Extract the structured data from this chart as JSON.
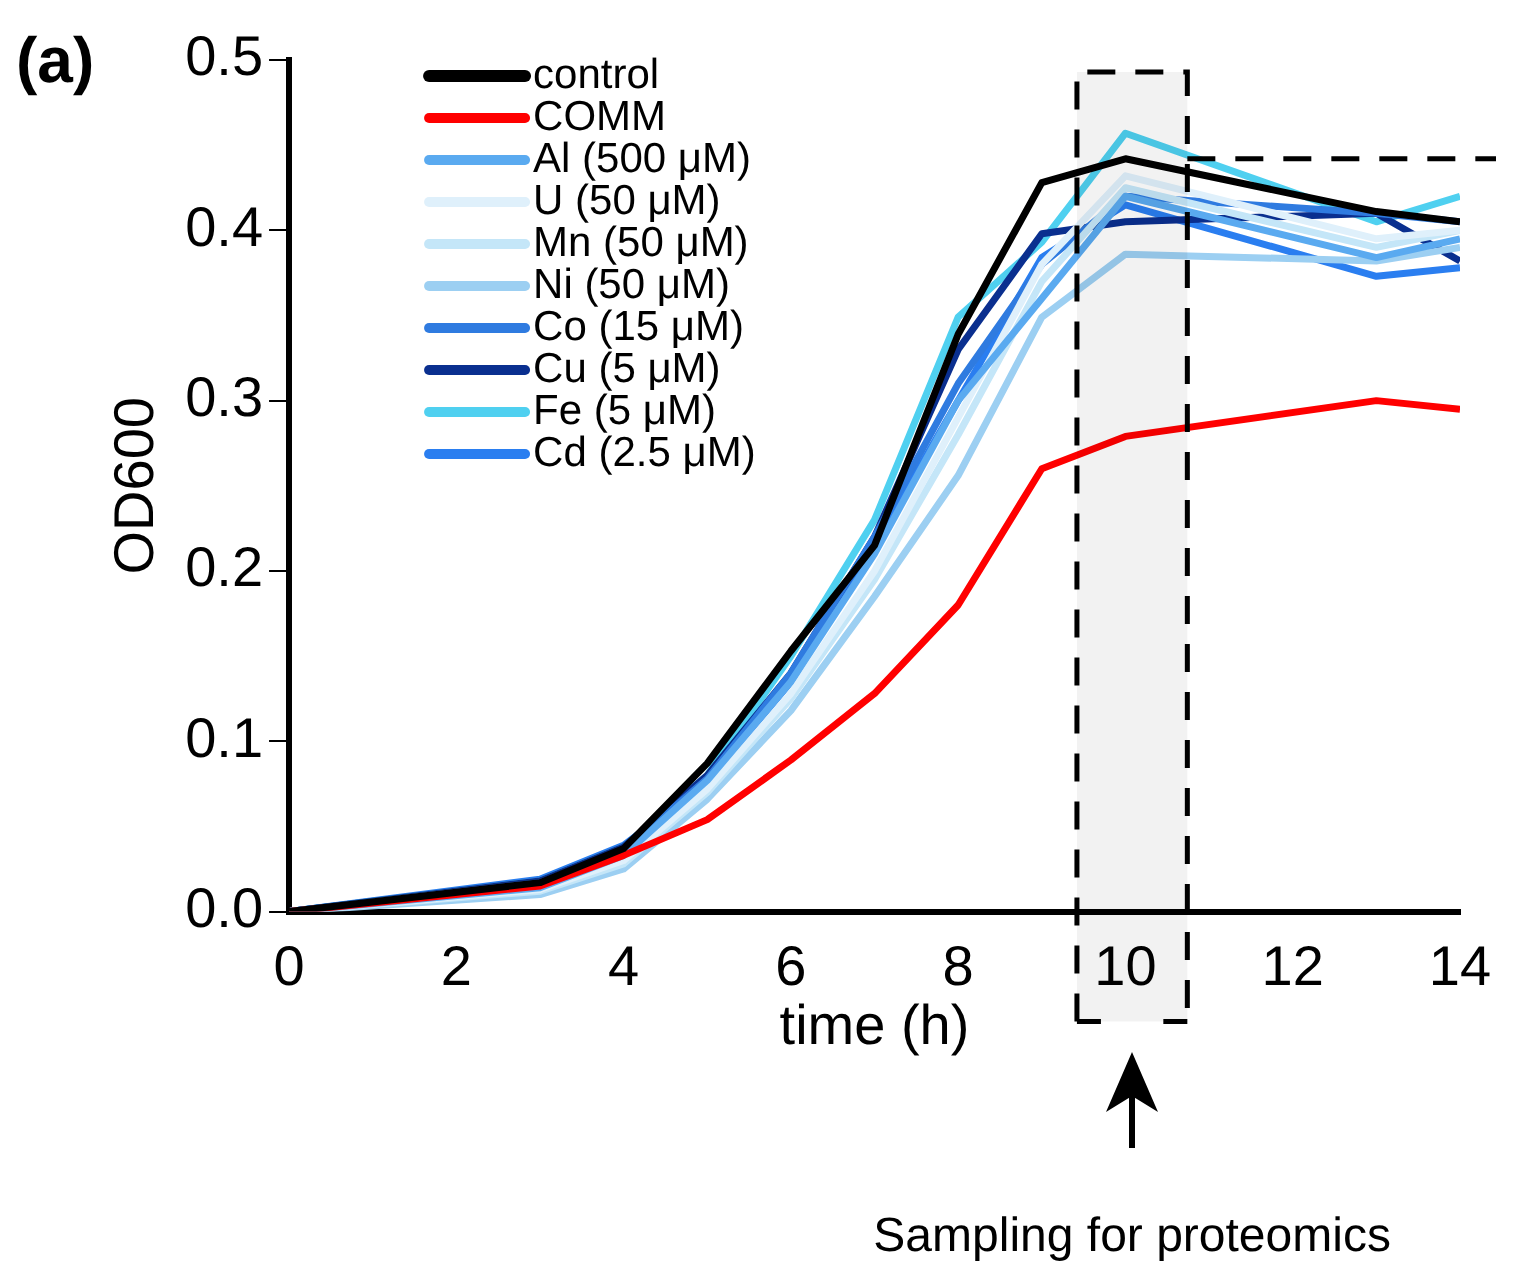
{
  "chart_data": {
    "type": "line",
    "xlabel": "time (h)",
    "ylabel": "OD600",
    "annotations": [
      "(a)",
      "Sampling for proteomics"
    ],
    "bands": [
      {
        "axis": "x",
        "from": 9.42,
        "to": 10.74,
        "color": "#000000"
      }
    ],
    "x": [
      0,
      3,
      4,
      5,
      6,
      7,
      8,
      9,
      10,
      13,
      14
    ],
    "xlim": [
      0,
      14
    ],
    "xticks": [
      0,
      2,
      4,
      6,
      8,
      10,
      12,
      14
    ],
    "ylim": [
      0,
      0.5
    ],
    "yticks": [
      {
        "value": 0,
        "label": "0.0"
      },
      0.1,
      0.2,
      0.3,
      0.4,
      0.5
    ],
    "grid": false,
    "legend": "top left",
    "marker": "none",
    "line_style": "solid",
    "ref_lines": [
      {
        "axis": "y",
        "value": 0.442,
        "color": "#000000",
        "line_style": "dashed"
      }
    ],
    "series": [
      {
        "name": "control",
        "color": "#000000",
        "values": [
          0,
          0.017,
          0.037,
          0.087,
          0.153,
          0.215,
          0.339,
          0.428,
          0.442,
          0.411,
          0.405
        ]
      },
      {
        "name": "COMM",
        "color": "#ff0000",
        "values": [
          0,
          0.015,
          0.033,
          0.054,
          0.089,
          0.128,
          0.18,
          0.26,
          0.279,
          0.3,
          0.295
        ]
      },
      {
        "name": "Al (500 μM)",
        "color": "#5aaaf0",
        "values": [
          0,
          0.014,
          0.033,
          0.077,
          0.135,
          0.21,
          0.3,
          0.36,
          0.42,
          0.384,
          0.395
        ]
      },
      {
        "name": "U (50 μM)",
        "color": "#dff0fb",
        "values": [
          0,
          0.013,
          0.03,
          0.072,
          0.128,
          0.2,
          0.29,
          0.38,
          0.432,
          0.395,
          0.4
        ]
      },
      {
        "name": "Mn (50 μM)",
        "color": "#c4e6f8",
        "values": [
          0,
          0.012,
          0.028,
          0.07,
          0.125,
          0.195,
          0.28,
          0.37,
          0.425,
          0.39,
          0.4
        ]
      },
      {
        "name": "Ni (50 μM)",
        "color": "#9ccff2",
        "values": [
          0,
          0.01,
          0.025,
          0.066,
          0.118,
          0.185,
          0.256,
          0.349,
          0.386,
          0.382,
          0.39
        ]
      },
      {
        "name": "Co (15 μM)",
        "color": "#2f7be0",
        "values": [
          0,
          0.017,
          0.036,
          0.078,
          0.14,
          0.22,
          0.31,
          0.38,
          0.42,
          0.41,
          0.405
        ]
      },
      {
        "name": "Cu (5 μM)",
        "color": "#0a2f8f",
        "values": [
          0,
          0.018,
          0.038,
          0.08,
          0.14,
          0.22,
          0.33,
          0.398,
          0.405,
          0.41,
          0.382
        ]
      },
      {
        "name": "Fe (5 μM)",
        "color": "#4fd0f0",
        "values": [
          0,
          0.018,
          0.038,
          0.08,
          0.15,
          0.23,
          0.349,
          0.393,
          0.457,
          0.405,
          0.42
        ]
      },
      {
        "name": "Cd (2.5 μM)",
        "color": "#2a7ef0",
        "values": [
          0,
          0.019,
          0.039,
          0.076,
          0.135,
          0.215,
          0.3,
          0.384,
          0.415,
          0.373,
          0.378
        ]
      }
    ]
  }
}
